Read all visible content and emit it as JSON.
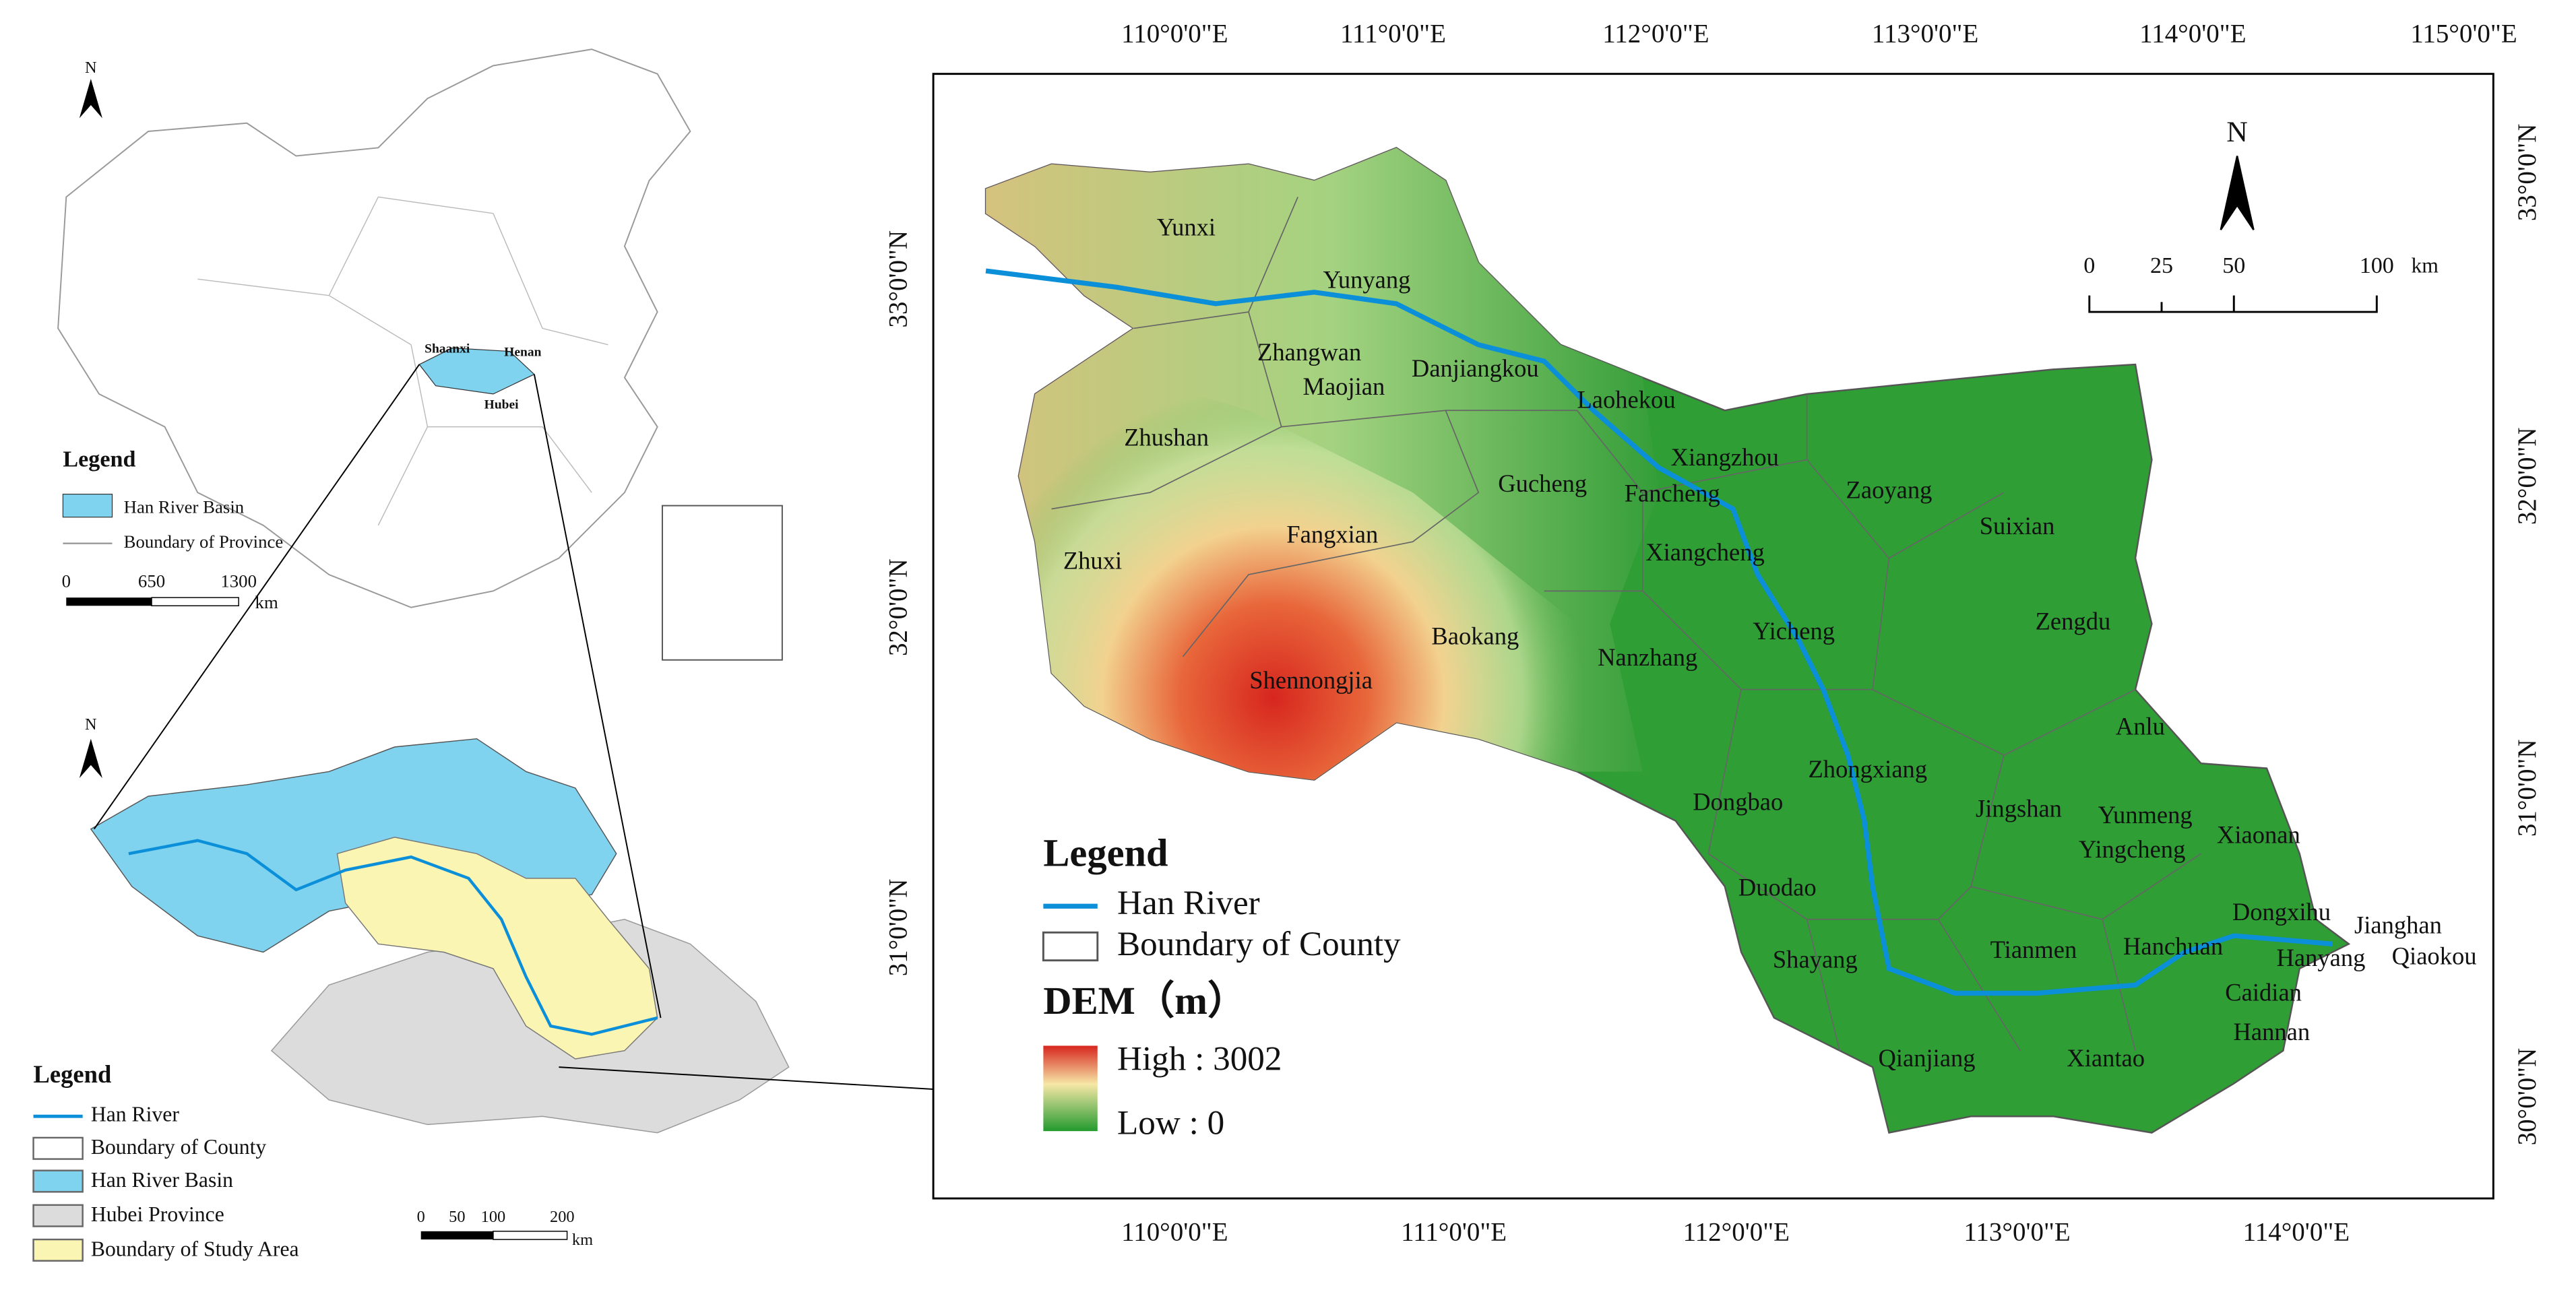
{
  "inset_china": {
    "north": "N",
    "provinces": [
      "Shaanxi",
      "Henan",
      "Hubei"
    ],
    "legend": {
      "title": "Legend",
      "items": [
        "Han River Basin",
        "Boundary of Province"
      ]
    },
    "scale": {
      "ticks": [
        0,
        650,
        1300
      ],
      "unit": "km"
    }
  },
  "inset_basin": {
    "north": "N",
    "legend": {
      "title": "Legend",
      "items": [
        "Han River",
        "Boundary of County",
        "Han River Basin",
        "Hubei Province",
        "Boundary of Study Area"
      ]
    },
    "scale": {
      "ticks": [
        0,
        50,
        100,
        200
      ],
      "unit": "km"
    }
  },
  "main_map": {
    "top_labels": [
      "110°0'0\"E",
      "111°0'0\"E",
      "112°0'0\"E",
      "113°0'0\"E",
      "114°0'0\"E",
      "115°0'0\"E"
    ],
    "bottom_labels": [
      "110°0'0\"E",
      "111°0'0\"E",
      "112°0'0\"E",
      "113°0'0\"E",
      "114°0'0\"E"
    ],
    "left_labels": [
      "33°0'0\"N",
      "32°0'0\"N",
      "31°0'0\"N"
    ],
    "right_labels": [
      "33°0'0\"N",
      "32°0'0\"N",
      "31°0'0\"N",
      "30°0'0\"N"
    ],
    "north": "N",
    "scale": {
      "ticks": [
        0,
        25,
        50,
        100
      ],
      "unit": "km"
    },
    "legend": {
      "title": "Legend",
      "items": [
        "Han River",
        "Boundary of County"
      ],
      "dem_title": "DEM（m）",
      "high": "High : 3002",
      "low": "Low : 0"
    },
    "counties": [
      "Yunxi",
      "Yunyang",
      "Zhangwan",
      "Maojian",
      "Danjiangkou",
      "Laohekou",
      "Zhushan",
      "Xiangzhou",
      "Gucheng",
      "Fancheng",
      "Zaoyang",
      "Suixian",
      "Fangxian",
      "Zhuxi",
      "Xiangcheng",
      "Yicheng",
      "Zengdu",
      "Baokang",
      "Nanzhang",
      "Shennongjia",
      "Anlu",
      "Zhongxiang",
      "Dongbao",
      "Jingshan",
      "Yunmeng",
      "Xiaonan",
      "Yingcheng",
      "Duodao",
      "Dongxihu",
      "Jianghan",
      "Shayang",
      "Tianmen",
      "Hanchuan",
      "Hanyang",
      "Qiaokou",
      "Caidian",
      "Qianjiang",
      "Xiantao",
      "Hannan"
    ]
  }
}
